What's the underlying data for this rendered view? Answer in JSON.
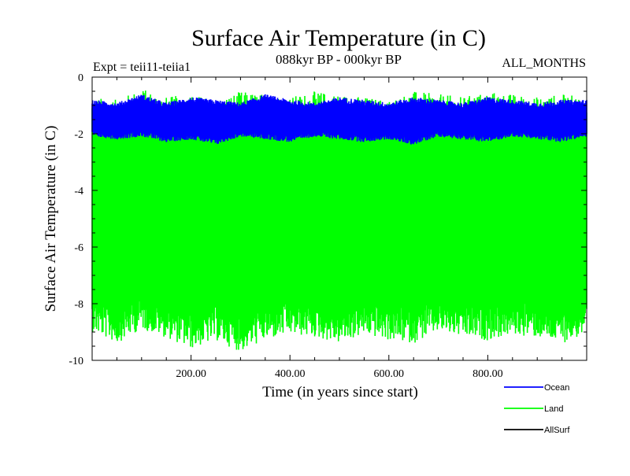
{
  "chart_data": {
    "type": "line",
    "title": "Surface Air Temperature (in C)",
    "subtitle": "088kyr BP - 000kyr BP",
    "experiment_label": "Expt = teii11-teiia1",
    "months_label": "ALL_MONTHS",
    "xlabel": "Time (in years since start)",
    "ylabel": "Surface Air Temperature (in C)",
    "xlim": [
      0,
      1000
    ],
    "ylim": [
      -10,
      0
    ],
    "x_ticks": [
      200,
      400,
      600,
      800
    ],
    "x_tick_labels": [
      "200.00",
      "400.00",
      "600.00",
      "800.00"
    ],
    "y_ticks": [
      0,
      -2,
      -4,
      -6,
      -8,
      -10
    ],
    "y_tick_labels": [
      "0",
      "-2",
      "-4",
      "-6",
      "-8",
      "-10"
    ],
    "grid": false,
    "legend_position": "bottom-right",
    "series": [
      {
        "name": "Ocean",
        "color": "#0000ff",
        "x": [
          0,
          50,
          100,
          150,
          200,
          250,
          300,
          350,
          400,
          450,
          500,
          550,
          600,
          650,
          700,
          750,
          800,
          850,
          900,
          950,
          1000
        ],
        "min": [
          -2.1,
          -2.2,
          -2.1,
          -2.3,
          -2.2,
          -2.4,
          -2.1,
          -2.2,
          -2.3,
          -2.1,
          -2.2,
          -2.3,
          -2.2,
          -2.4,
          -2.1,
          -2.2,
          -2.3,
          -2.1,
          -2.2,
          -2.3,
          -2.1
        ],
        "max": [
          -0.8,
          -0.9,
          -0.6,
          -0.9,
          -0.7,
          -0.8,
          -0.9,
          -0.6,
          -0.8,
          -0.9,
          -0.7,
          -0.8,
          -0.9,
          -0.7,
          -0.8,
          -0.9,
          -0.7,
          -0.8,
          -0.9,
          -0.8,
          -0.8
        ]
      },
      {
        "name": "Land",
        "color": "#00ff00",
        "x": [
          0,
          50,
          100,
          150,
          200,
          250,
          300,
          350,
          400,
          450,
          500,
          550,
          600,
          650,
          700,
          750,
          800,
          850,
          900,
          950,
          1000
        ],
        "min": [
          -9.0,
          -9.4,
          -8.9,
          -9.2,
          -9.6,
          -9.3,
          -9.7,
          -9.3,
          -9.1,
          -9.2,
          -9.4,
          -9.1,
          -9.3,
          -9.4,
          -9.0,
          -9.2,
          -9.3,
          -9.1,
          -9.2,
          -9.4,
          -9.1
        ],
        "max": [
          -0.7,
          -0.8,
          -0.4,
          -0.7,
          -0.6,
          -0.8,
          -0.5,
          -0.6,
          -0.7,
          -0.5,
          -0.6,
          -0.7,
          -0.8,
          -0.5,
          -0.6,
          -0.7,
          -0.5,
          -0.6,
          -0.7,
          -0.6,
          -0.7
        ]
      },
      {
        "name": "AllSurf",
        "color": "#000000",
        "x": [],
        "min": [],
        "max": []
      }
    ]
  }
}
